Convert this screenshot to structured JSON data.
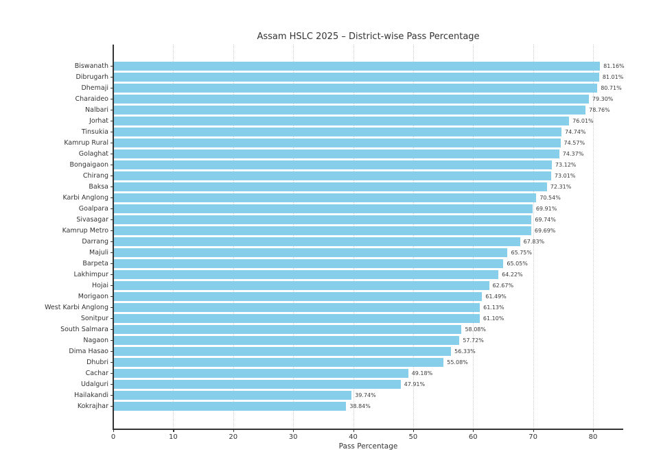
{
  "chart_data": {
    "type": "bar",
    "orientation": "horizontal",
    "title": "Assam HSLC 2025 – District-wise Pass Percentage",
    "xlabel": "Pass Percentage",
    "ylabel": "",
    "xlim": [
      0,
      85
    ],
    "xticks": [
      0,
      10,
      20,
      30,
      40,
      50,
      60,
      70,
      80
    ],
    "grid": "vertical dotted gridlines at each x tick",
    "legend": "none",
    "bar_color": "#87CEEB",
    "axis_color": "#333333",
    "grid_color": "#cfcfcf",
    "categories": [
      "Biswanath",
      "Dibrugarh",
      "Dhemaji",
      "Charaideo",
      "Nalbari",
      "Jorhat",
      "Tinsukia",
      "Kamrup Rural",
      "Golaghat",
      "Bongaigaon",
      "Chirang",
      "Baksa",
      "Karbi Anglong",
      "Goalpara",
      "Sivasagar",
      "Kamrup Metro",
      "Darrang",
      "Majuli",
      "Barpeta",
      "Lakhimpur",
      "Hojai",
      "Morigaon",
      "West Karbi Anglong",
      "Sonitpur",
      "South Salmara",
      "Nagaon",
      "Dima Hasao",
      "Dhubri",
      "Cachar",
      "Udalguri",
      "Hailakandi",
      "Kokrajhar"
    ],
    "values": [
      81.16,
      81.01,
      80.71,
      79.3,
      78.76,
      76.01,
      74.74,
      74.57,
      74.37,
      73.12,
      73.01,
      72.31,
      70.54,
      69.91,
      69.74,
      69.69,
      67.83,
      65.75,
      65.05,
      64.22,
      62.67,
      61.49,
      61.13,
      61.1,
      58.08,
      57.72,
      56.33,
      55.08,
      49.18,
      47.91,
      39.74,
      38.84
    ],
    "value_labels": [
      "81.16%",
      "81.01%",
      "80.71%",
      "79.30%",
      "78.76%",
      "76.01%",
      "74.74%",
      "74.57%",
      "74.37%",
      "73.12%",
      "73.01%",
      "72.31%",
      "70.54%",
      "69.91%",
      "69.74%",
      "69.69%",
      "67.83%",
      "65.75%",
      "65.05%",
      "64.22%",
      "62.67%",
      "61.49%",
      "61.13%",
      "61.10%",
      "58.08%",
      "57.72%",
      "56.33%",
      "55.08%",
      "49.18%",
      "47.91%",
      "39.74%",
      "38.84%"
    ]
  }
}
